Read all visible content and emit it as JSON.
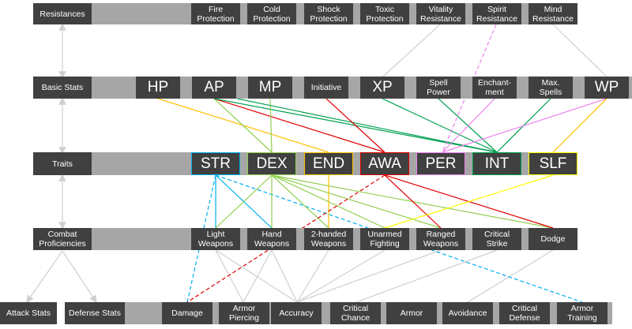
{
  "rows": [
    {
      "label": "Resistances",
      "items": [
        "Fire\nProtection",
        "Cold\nProtection",
        "Shock\nProtection",
        "Toxic\nProtection",
        "Vitality\nResistance",
        "Spirit\nResistance",
        "Mind\nResistance"
      ]
    },
    {
      "label": "Basic Stats",
      "items": [
        "HP",
        "AP",
        "MP",
        "Initiative",
        "XP",
        "Spell\nPower",
        "Enchant-\nment",
        "Max.\nSpells",
        "WP"
      ]
    },
    {
      "label": "Traits",
      "items": [
        "STR",
        "DEX",
        "END",
        "AWA",
        "PER",
        "INT",
        "SLF"
      ]
    },
    {
      "label": "Combat\nProficiencies",
      "items": [
        "Light\nWeapons",
        "Hand\nWeapons",
        "2-handed\nWeapons",
        "Unarmed\nFighting",
        "Ranged\nWeapons",
        "Critical\nStrike",
        "Dodge"
      ]
    }
  ],
  "bottom": {
    "labels": [
      "Attack Stats",
      "Defense Stats"
    ],
    "items": [
      "Damage",
      "Armor\nPiercing",
      "Accuracy",
      "Critical\nChance",
      "Armor",
      "Avoidance",
      "Critical\nDefense",
      "Armor\nTraining"
    ]
  }
}
